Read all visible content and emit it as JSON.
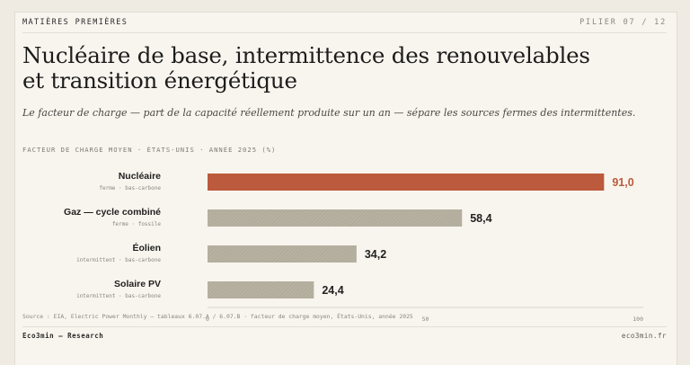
{
  "header": {
    "kicker": "MATIÈRES PREMIÈRES",
    "pillar": "PILIER 07 / 12",
    "title": "Nucléaire de base, intermittence des renouvelables et transition énergétique",
    "subtitle": "Le facteur de charge — part de la capacité réellement produite sur un an — sépare les sources fermes des intermittentes."
  },
  "chart_data": {
    "type": "bar",
    "orientation": "horizontal",
    "title": "FACTEUR DE CHARGE MOYEN · ÉTATS-UNIS · ANNÉE 2025 (%)",
    "categories": [
      "Nucléaire",
      "Gaz — cycle combiné",
      "Éolien",
      "Solaire PV"
    ],
    "sublabels": [
      "ferme · bas-carbone",
      "ferme · fossile",
      "intermittent · bas-carbone",
      "intermittent · bas-carbone"
    ],
    "values": [
      91.0,
      58.4,
      34.2,
      24.4
    ],
    "value_labels": [
      "91,0",
      "58,4",
      "34,2",
      "24,4"
    ],
    "xlim": [
      0,
      100
    ],
    "xticks": [
      0,
      50,
      100
    ],
    "grid": false,
    "colors": {
      "highlight": "#bb5a3c",
      "default": "#b7b1a2",
      "highlight_text": "#bb5a3c",
      "default_text": "#222222"
    }
  },
  "footer": {
    "source": "Source : EIA, Electric Power Monthly — tableaux 6.07.A / 6.07.B · facteur de charge moyen, États-Unis, année 2025",
    "brand": "Eco3min — Research",
    "domain": "eco3min.fr"
  }
}
